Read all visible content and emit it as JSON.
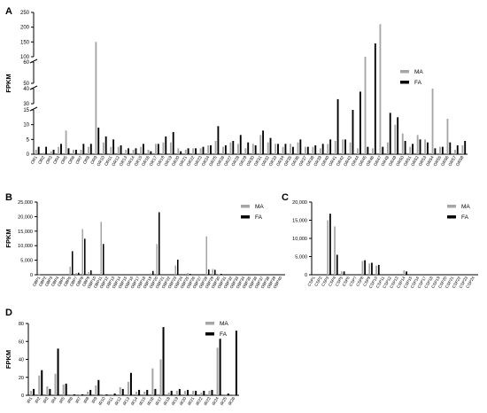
{
  "colors": {
    "MA": "#a6a6a6",
    "FA": "#000000",
    "axis": "#000000"
  },
  "chart_data": [
    {
      "panel": "A",
      "type": "bar",
      "ylabel": "FPKM",
      "legend": [
        "MA",
        "FA"
      ],
      "legend_position": "right",
      "broken_axis": true,
      "y_segments": [
        {
          "range": [
            0,
            15
          ],
          "ticks": [
            0,
            5,
            10,
            15
          ]
        },
        {
          "range": [
            30,
            40
          ],
          "ticks": [
            30,
            40
          ]
        },
        {
          "range": [
            50,
            60
          ],
          "ticks": [
            50,
            60
          ]
        },
        {
          "range": [
            100,
            250
          ],
          "ticks": [
            100,
            150,
            200,
            250
          ]
        }
      ],
      "categories": [
        "OR1",
        "OR2",
        "OR3",
        "OR4",
        "OR5",
        "OR6",
        "OR7",
        "OR8",
        "OR9",
        "OR10",
        "OR11",
        "OR12",
        "OR13",
        "OR14",
        "OR15",
        "OR16",
        "OR17",
        "OR18",
        "OR19",
        "OR20",
        "OR21",
        "OR22",
        "OR23",
        "OR24",
        "OR25",
        "OR26",
        "OR27",
        "OR28",
        "OR29",
        "OR30",
        "OR31",
        "OR32",
        "OR33",
        "OR34",
        "OR35",
        "OR36",
        "OR37",
        "OR38",
        "OR39",
        "OR40",
        "OR41",
        "OR42",
        "OR43",
        "OR44",
        "OR45",
        "OR46",
        "OR47",
        "OR48",
        "OR49",
        "OR50",
        "OR51",
        "OR52",
        "OR53",
        "OR54",
        "OR55",
        "OR56",
        "OR57",
        "OR58"
      ],
      "series": [
        {
          "name": "MA",
          "values": [
            1.5,
            0.5,
            1,
            2.5,
            8,
            1.5,
            1.5,
            2.5,
            150,
            4,
            2.5,
            2.5,
            1.5,
            1.5,
            2.5,
            1.5,
            3.5,
            4,
            4,
            2,
            1.5,
            2,
            2,
            3,
            4.5,
            2.5,
            4,
            3.5,
            2,
            3.5,
            6.5,
            4,
            3.5,
            2.5,
            3.5,
            4,
            2.5,
            2.5,
            2,
            3.5,
            4.5,
            5,
            4,
            2,
            100,
            2,
            210,
            4,
            10,
            7,
            2.5,
            6.5,
            5,
            40,
            2.5,
            12,
            1.5,
            3
          ]
        },
        {
          "name": "FA",
          "values": [
            2.5,
            2.5,
            1.5,
            3.5,
            2,
            1.5,
            3.5,
            3.5,
            9,
            6,
            5,
            3,
            2,
            2,
            3.5,
            1,
            3.5,
            6,
            7.5,
            1,
            2,
            2,
            2.5,
            3,
            9.5,
            3,
            4.5,
            6.5,
            4,
            3,
            8,
            5.5,
            3.5,
            3.5,
            2.5,
            5,
            2.5,
            3,
            3.5,
            5,
            33,
            5,
            15,
            38,
            2.5,
            145,
            2.5,
            14,
            12.5,
            4.5,
            3.5,
            5,
            4,
            2,
            2.5,
            4,
            3,
            4.5
          ]
        }
      ]
    },
    {
      "panel": "B",
      "type": "bar",
      "ylabel": "FPKM",
      "legend": [
        "MA",
        "FA"
      ],
      "legend_position": "top-right",
      "ylim": [
        0,
        25000
      ],
      "yticks": [
        0,
        5000,
        10000,
        15000,
        20000,
        25000
      ],
      "ytick_labels": [
        "0",
        "5,000",
        "10,000",
        "15,000",
        "20,000",
        "25,000"
      ],
      "categories": [
        "OBP1",
        "OBP2",
        "OBP3",
        "OBP4",
        "OBP5",
        "OBP6",
        "OBP7",
        "OBP8",
        "OBP9",
        "OBP10",
        "OBP11",
        "OBP12",
        "OBP13",
        "OBP14",
        "OBP15",
        "OBP16",
        "OBP17",
        "OBP18",
        "OBP19",
        "OBP20",
        "OBP21",
        "OBP22",
        "OBP23",
        "OBP24",
        "OBP25",
        "OBP26",
        "OBP27",
        "OBP28",
        "OBP29",
        "OBP30",
        "OBP31",
        "OBP32",
        "OBP33",
        "OBP34",
        "OBP35",
        "OBP36",
        "OBP37",
        "OBP38",
        "OBP39",
        "OBP40"
      ],
      "series": [
        {
          "name": "MA",
          "values": [
            100,
            0,
            0,
            0,
            0,
            2800,
            600,
            15700,
            900,
            0,
            18200,
            0,
            0,
            0,
            0,
            0,
            0,
            0,
            500,
            10600,
            0,
            0,
            3200,
            0,
            600,
            0,
            0,
            13200,
            2000,
            200,
            0,
            0,
            0,
            0,
            0,
            0,
            0,
            0,
            0,
            0
          ]
        },
        {
          "name": "FA",
          "values": [
            100,
            0,
            0,
            0,
            0,
            8100,
            700,
            12400,
            1500,
            0,
            10600,
            0,
            0,
            0,
            0,
            0,
            0,
            0,
            1300,
            21500,
            0,
            0,
            5200,
            0,
            300,
            0,
            0,
            1800,
            1700,
            300,
            0,
            0,
            0,
            0,
            0,
            0,
            0,
            0,
            0,
            0
          ]
        }
      ]
    },
    {
      "panel": "C",
      "type": "bar",
      "ylabel": "",
      "legend": [
        "MA",
        "FA"
      ],
      "legend_position": "top-right",
      "ylim": [
        0,
        20000
      ],
      "yticks": [
        0,
        5000,
        10000,
        15000,
        20000
      ],
      "ytick_labels": [
        "0",
        "5,000",
        "10,000",
        "15,000",
        "20,000"
      ],
      "categories": [
        "CSP1",
        "CSP2",
        "CSP3",
        "CSP4",
        "CSP5",
        "CSP6",
        "CSP7",
        "CSP8",
        "CSP9",
        "CSP10",
        "CSP11",
        "CSP12",
        "CSP13",
        "CSP14",
        "CSP15",
        "CSP16",
        "CSP17",
        "CSP18",
        "CSP19",
        "CSP20",
        "CSP21",
        "CSP22",
        "CSP23",
        "CSP24"
      ],
      "series": [
        {
          "name": "MA",
          "values": [
            0,
            0,
            15000,
            13300,
            900,
            0,
            0,
            3800,
            3100,
            2500,
            0,
            0,
            0,
            1200,
            0,
            0,
            0,
            0,
            0,
            0,
            0,
            0,
            0,
            0
          ]
        },
        {
          "name": "FA",
          "values": [
            0,
            0,
            16800,
            5500,
            900,
            0,
            0,
            4000,
            3300,
            2700,
            0,
            0,
            0,
            900,
            0,
            0,
            0,
            0,
            0,
            0,
            0,
            0,
            0,
            0
          ]
        }
      ]
    },
    {
      "panel": "D",
      "type": "bar",
      "ylabel": "FPKM",
      "legend": [
        "MA",
        "FA"
      ],
      "legend_position": "top-right",
      "ylim": [
        0,
        80
      ],
      "yticks": [
        0,
        20,
        40,
        60,
        80
      ],
      "ytick_labels": [
        "0",
        "20",
        "40",
        "60",
        "80"
      ],
      "categories": [
        "IR1",
        "IR2",
        "IR3",
        "IR4",
        "IR5",
        "IR6",
        "IR7",
        "IR8",
        "IR9",
        "IR10",
        "IR11",
        "IR12",
        "IR13",
        "IR14",
        "IR15",
        "IR16",
        "IR17",
        "IR18",
        "IR19",
        "IR20",
        "IR21",
        "IR22",
        "IR23",
        "IR24",
        "IR25",
        "IR26"
      ],
      "series": [
        {
          "name": "MA",
          "values": [
            5,
            22,
            10,
            24,
            12,
            1,
            1,
            4,
            11,
            1,
            1,
            9,
            15,
            4,
            4,
            30,
            40,
            3,
            5,
            5,
            5,
            3,
            5,
            53,
            1,
            1
          ]
        },
        {
          "name": "FA",
          "values": [
            7,
            28,
            7,
            52,
            13,
            1,
            1,
            6,
            17,
            1,
            2,
            7,
            25,
            6,
            6,
            7,
            76,
            5,
            7,
            6,
            5,
            5,
            6,
            63,
            2,
            72
          ]
        }
      ]
    }
  ]
}
